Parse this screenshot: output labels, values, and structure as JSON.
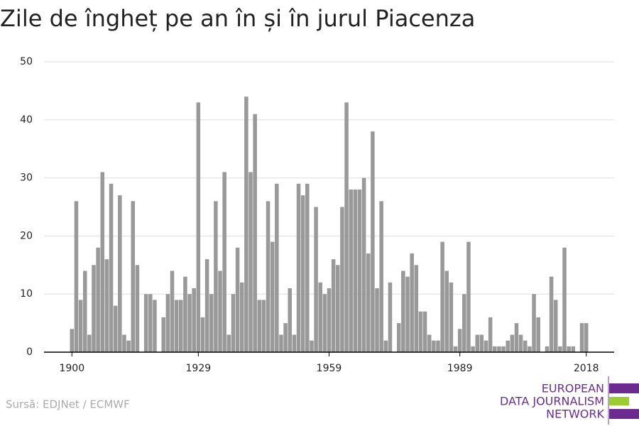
{
  "chart_data": {
    "type": "bar",
    "title": "Zile de îngheț pe an în și în jurul Piacenza",
    "source": "Sursă: EDJNet / ECMWF",
    "logo": [
      "EUROPEAN",
      "DATA JOURNALISM",
      "NETWORK"
    ],
    "color": "#999999",
    "x": [
      1900,
      1901,
      1902,
      1903,
      1904,
      1905,
      1906,
      1907,
      1908,
      1909,
      1910,
      1911,
      1912,
      1913,
      1914,
      1915,
      1916,
      1917,
      1918,
      1919,
      1920,
      1921,
      1922,
      1923,
      1924,
      1925,
      1926,
      1927,
      1928,
      1929,
      1930,
      1931,
      1932,
      1933,
      1934,
      1935,
      1936,
      1937,
      1938,
      1939,
      1940,
      1941,
      1942,
      1943,
      1944,
      1945,
      1946,
      1947,
      1948,
      1949,
      1950,
      1951,
      1952,
      1953,
      1954,
      1955,
      1956,
      1957,
      1958,
      1959,
      1960,
      1961,
      1962,
      1963,
      1964,
      1965,
      1966,
      1967,
      1968,
      1969,
      1970,
      1971,
      1972,
      1973,
      1974,
      1975,
      1976,
      1977,
      1978,
      1979,
      1980,
      1981,
      1982,
      1983,
      1984,
      1985,
      1986,
      1987,
      1988,
      1989,
      1990,
      1991,
      1992,
      1993,
      1994,
      1995,
      1996,
      1997,
      1998,
      1999,
      2000,
      2001,
      2002,
      2003,
      2004,
      2005,
      2006,
      2007,
      2008,
      2009,
      2010,
      2011,
      2012,
      2013,
      2014,
      2015,
      2016,
      2017,
      2018
    ],
    "values": [
      4,
      26,
      9,
      14,
      3,
      15,
      18,
      31,
      16,
      29,
      8,
      27,
      3,
      2,
      26,
      15,
      0,
      10,
      10,
      9,
      0,
      6,
      10,
      14,
      9,
      9,
      13,
      10,
      11,
      43,
      6,
      16,
      10,
      26,
      14,
      31,
      3,
      10,
      18,
      12,
      44,
      31,
      41,
      9,
      9,
      26,
      19,
      29,
      3,
      5,
      11,
      3,
      29,
      27,
      29,
      2,
      25,
      12,
      10,
      11,
      16,
      15,
      25,
      43,
      28,
      28,
      28,
      30,
      17,
      38,
      11,
      26,
      2,
      12,
      0,
      5,
      14,
      13,
      17,
      15,
      7,
      7,
      3,
      2,
      2,
      19,
      14,
      12,
      1,
      4,
      10,
      19,
      1,
      3,
      3,
      2,
      6,
      1,
      1,
      1,
      2,
      3,
      5,
      3,
      2,
      1,
      10,
      6,
      0,
      1,
      13,
      9,
      1,
      18,
      1,
      1,
      0,
      5,
      5
    ],
    "xlim": [
      1893.6,
      2024.4
    ],
    "xticks": [
      1900,
      1929,
      1959,
      1989,
      2018
    ],
    "ylim": [
      0,
      50
    ],
    "yticks": [
      0,
      10,
      20,
      30,
      40,
      50
    ],
    "grid": true
  }
}
